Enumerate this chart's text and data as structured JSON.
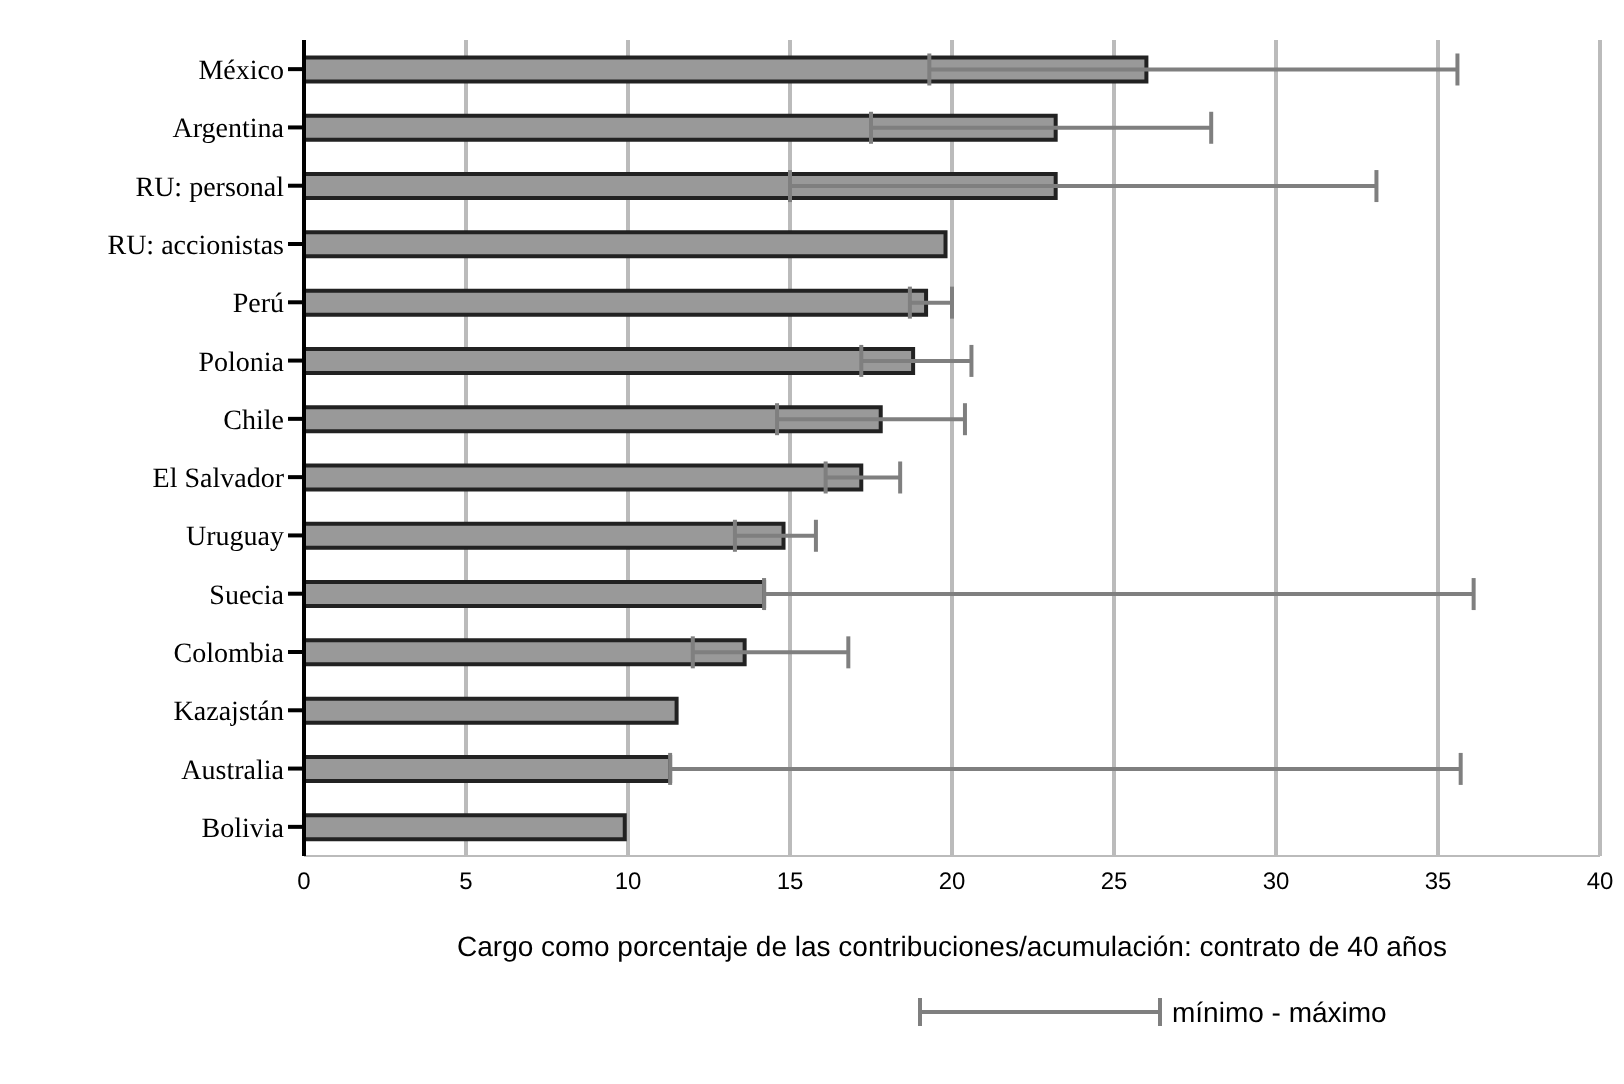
{
  "chart_data": {
    "type": "bar",
    "orientation": "horizontal",
    "xlabel": "Cargo como porcentaje de las contribuciones/acumulación: contrato de 40 años",
    "categories": [
      "México",
      "Argentina",
      "RU: personal",
      "RU: accionistas",
      "Perú",
      "Polonia",
      "Chile",
      "El Salvador",
      "Uruguay",
      "Suecia",
      "Colombia",
      "Kazajstán",
      "Australia",
      "Bolivia"
    ],
    "values": [
      26,
      23.2,
      23.2,
      19.8,
      19.2,
      18.8,
      17.8,
      17.2,
      14.8,
      14.2,
      13.6,
      11.5,
      11.3,
      9.9
    ],
    "errors": [
      [
        19.3,
        35.6
      ],
      [
        17.5,
        28
      ],
      [
        15,
        33.1
      ],
      null,
      [
        18.7,
        20
      ],
      [
        17.2,
        20.6
      ],
      [
        14.6,
        20.4
      ],
      [
        16.1,
        18.4
      ],
      [
        13.3,
        15.8
      ],
      [
        14.2,
        36.1
      ],
      [
        12,
        16.8
      ],
      null,
      [
        11.3,
        35.7
      ],
      null
    ],
    "color": "#999999",
    "xlim": [
      0,
      40
    ],
    "xticks": [
      0,
      5,
      10,
      15,
      20,
      25,
      30,
      35,
      40
    ],
    "grid": "x",
    "annotations": [
      "mínimo - máximo"
    ]
  }
}
